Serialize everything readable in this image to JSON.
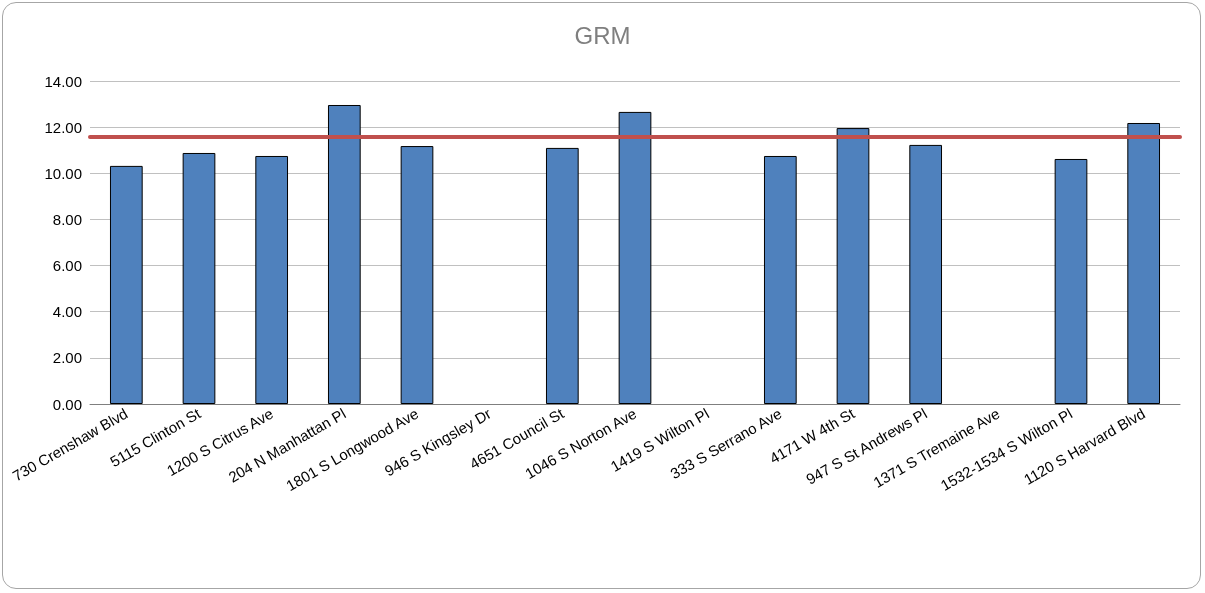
{
  "chart_data": {
    "type": "bar",
    "title": "GRM",
    "categories": [
      "730 Crenshaw Blvd",
      "5115 Clinton St",
      "1200 S Citrus Ave",
      "204 N Manhattan Pl",
      "1801 S Longwood Ave",
      "946 S Kingsley Dr",
      "4651 Council St",
      "1046 S Norton Ave",
      "1419 S Wilton Pl",
      "333 S Serrano Ave",
      "4171 W 4th St",
      "947 S St Andrews Pl",
      "1371 S Tremaine Ave",
      "1532-1534 S Wilton Pl",
      "1120 S Harvard Blvd"
    ],
    "values": [
      10.32,
      10.88,
      10.75,
      12.96,
      11.18,
      null,
      11.1,
      12.66,
      null,
      10.75,
      11.96,
      11.23,
      null,
      10.62,
      12.18
    ],
    "color": "#4f81bd",
    "ylim": [
      0,
      14
    ],
    "yticks": [
      {
        "value": 0,
        "label": "0.00"
      },
      {
        "value": 2,
        "label": "2.00"
      },
      {
        "value": 4,
        "label": "4.00"
      },
      {
        "value": 6,
        "label": "6.00"
      },
      {
        "value": 8,
        "label": "8.00"
      },
      {
        "value": 10,
        "label": "10.00"
      },
      {
        "value": 12,
        "label": "12.00"
      },
      {
        "value": 14,
        "label": "14.00"
      }
    ],
    "grid": "y",
    "ref_lines": [
      {
        "axis": "y",
        "value": 11.57,
        "label": null,
        "color": "#c0504d"
      }
    ]
  }
}
